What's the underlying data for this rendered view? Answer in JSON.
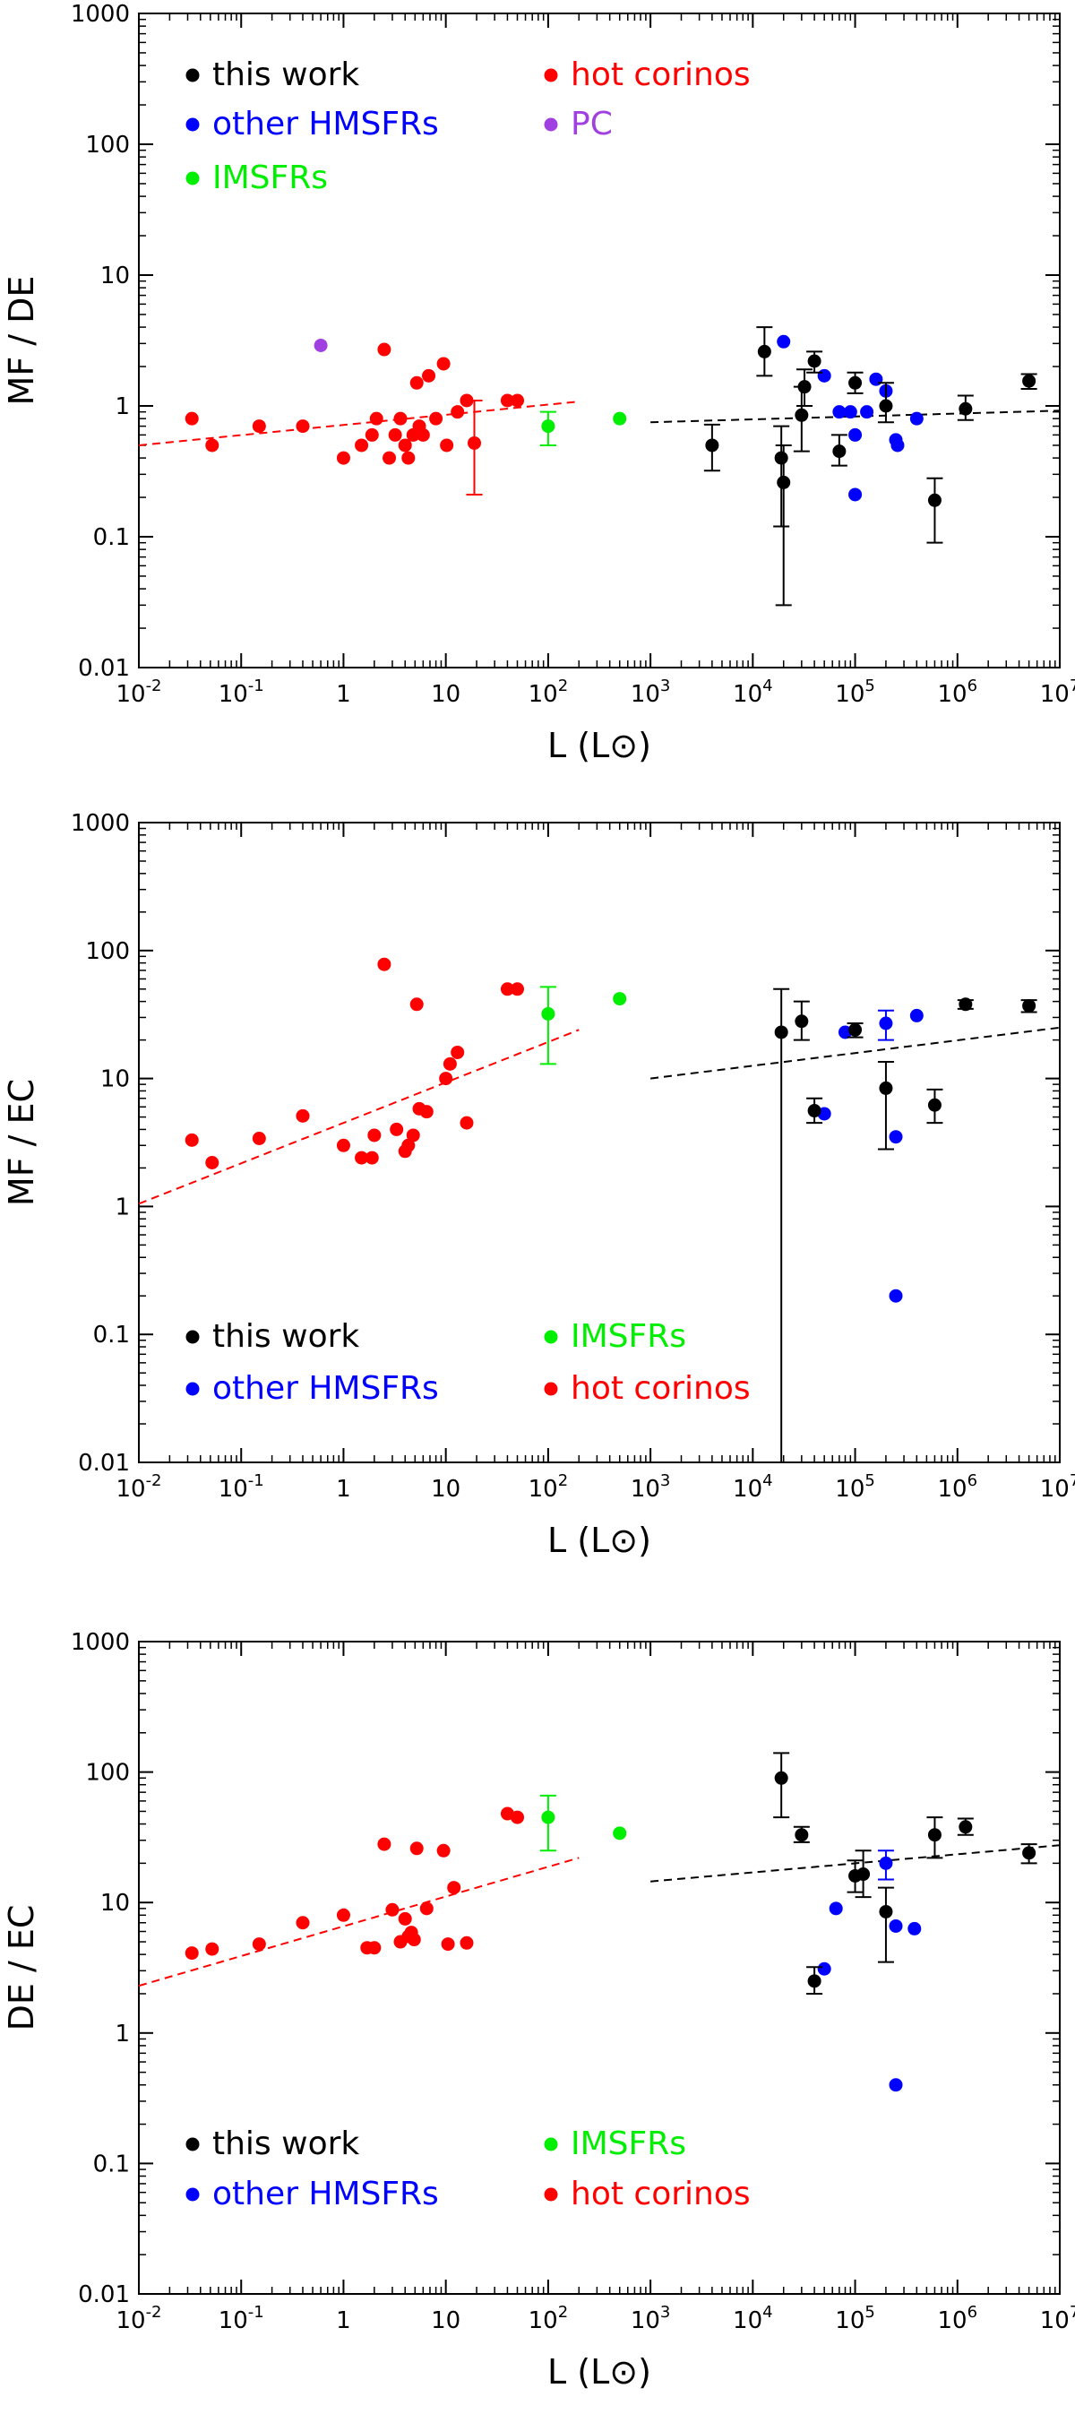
{
  "colors": {
    "this_work": "#000000",
    "other_hmsfrs": "#0000ff",
    "hot_corinos": "#ff0000",
    "imsfrs": "#00ee00",
    "pc": "#a040e0"
  },
  "chart_data": [
    {
      "type": "scatter",
      "xscale": "log",
      "yscale": "log",
      "xlabel": "L (L⊙)",
      "ylabel": "MF / DE",
      "xlim": [
        0.01,
        10000000
      ],
      "ylim": [
        0.01,
        1000
      ],
      "x_ticks": [
        {
          "v": 0.01,
          "m": "10",
          "e": "-2"
        },
        {
          "v": 0.1,
          "m": "10",
          "e": "-1"
        },
        {
          "v": 1,
          "m": "1",
          "e": ""
        },
        {
          "v": 10,
          "m": "10",
          "e": ""
        },
        {
          "v": 100,
          "m": "10",
          "e": "2"
        },
        {
          "v": 1000,
          "m": "10",
          "e": "3"
        },
        {
          "v": 10000,
          "m": "10",
          "e": "4"
        },
        {
          "v": 100000,
          "m": "10",
          "e": "5"
        },
        {
          "v": 1000000,
          "m": "10",
          "e": "6"
        },
        {
          "v": 10000000,
          "m": "10",
          "e": "7"
        }
      ],
      "y_ticks": [
        "0.01",
        "0.1",
        "1",
        "10",
        "100",
        "1000"
      ],
      "legend": [
        {
          "label": "this work",
          "color": "#000000"
        },
        {
          "label": "hot corinos",
          "color": "#ff0000"
        },
        {
          "label": "other HMSFRs",
          "color": "#0000ff"
        },
        {
          "label": "PC",
          "color": "#a040e0"
        },
        {
          "label": "IMSFRs",
          "color": "#00ee00"
        }
      ],
      "series": [
        {
          "name": "hot corinos",
          "color": "#ff0000",
          "points": [
            {
              "x": 0.033,
              "y": 0.8
            },
            {
              "x": 0.052,
              "y": 0.5
            },
            {
              "x": 0.15,
              "y": 0.7
            },
            {
              "x": 0.4,
              "y": 0.7
            },
            {
              "x": 1.0,
              "y": 0.4
            },
            {
              "x": 1.5,
              "y": 0.5
            },
            {
              "x": 1.9,
              "y": 0.6
            },
            {
              "x": 2.1,
              "y": 0.8
            },
            {
              "x": 2.5,
              "y": 2.7
            },
            {
              "x": 2.8,
              "y": 0.4
            },
            {
              "x": 3.2,
              "y": 0.6
            },
            {
              "x": 3.6,
              "y": 0.8
            },
            {
              "x": 4.0,
              "y": 0.5
            },
            {
              "x": 4.3,
              "y": 0.4
            },
            {
              "x": 4.8,
              "y": 0.6
            },
            {
              "x": 5.2,
              "y": 1.5
            },
            {
              "x": 5.5,
              "y": 0.7
            },
            {
              "x": 6.0,
              "y": 0.6
            },
            {
              "x": 6.8,
              "y": 1.7
            },
            {
              "x": 8.0,
              "y": 0.8
            },
            {
              "x": 9.5,
              "y": 2.1
            },
            {
              "x": 10.2,
              "y": 0.5
            },
            {
              "x": 13.0,
              "y": 0.9
            },
            {
              "x": 16.0,
              "y": 1.1
            },
            {
              "x": 19.0,
              "y": 0.52,
              "lo": 0.21,
              "hi": 1.1
            },
            {
              "x": 40.0,
              "y": 1.1
            },
            {
              "x": 50.0,
              "y": 1.1
            }
          ]
        },
        {
          "name": "PC",
          "color": "#a040e0",
          "points": [
            {
              "x": 0.6,
              "y": 2.9
            }
          ]
        },
        {
          "name": "IMSFRs",
          "color": "#00ee00",
          "points": [
            {
              "x": 100,
              "y": 0.7,
              "lo": 0.5,
              "hi": 0.9
            },
            {
              "x": 500,
              "y": 0.8
            }
          ]
        },
        {
          "name": "other HMSFRs",
          "color": "#0000ff",
          "points": [
            {
              "x": 20000,
              "y": 3.1
            },
            {
              "x": 50000,
              "y": 1.7
            },
            {
              "x": 70000,
              "y": 0.9
            },
            {
              "x": 90000,
              "y": 0.9
            },
            {
              "x": 100000,
              "y": 0.6
            },
            {
              "x": 100000,
              "y": 0.21
            },
            {
              "x": 130000,
              "y": 0.9
            },
            {
              "x": 160000,
              "y": 1.6
            },
            {
              "x": 200000,
              "y": 1.3
            },
            {
              "x": 250000,
              "y": 0.55
            },
            {
              "x": 260000,
              "y": 0.5
            },
            {
              "x": 400000,
              "y": 0.8
            }
          ]
        },
        {
          "name": "this work",
          "color": "#000000",
          "points": [
            {
              "x": 4000,
              "y": 0.5,
              "lo": 0.32,
              "hi": 0.72
            },
            {
              "x": 13000,
              "y": 2.6,
              "lo": 1.7,
              "hi": 4.0
            },
            {
              "x": 19000,
              "y": 0.4,
              "lo": 0.12,
              "hi": 0.7
            },
            {
              "x": 20000,
              "y": 0.26,
              "lo": 0.03,
              "hi": 0.5
            },
            {
              "x": 30000,
              "y": 0.85,
              "lo": 0.45,
              "hi": 1.4
            },
            {
              "x": 32000,
              "y": 1.4,
              "lo": 1.0,
              "hi": 1.9
            },
            {
              "x": 40000,
              "y": 2.2,
              "lo": 1.8,
              "hi": 2.6
            },
            {
              "x": 70000,
              "y": 0.45,
              "lo": 0.35,
              "hi": 0.6
            },
            {
              "x": 100000,
              "y": 1.5,
              "lo": 1.25,
              "hi": 1.8
            },
            {
              "x": 200000,
              "y": 1.0,
              "lo": 0.75,
              "hi": 1.5
            },
            {
              "x": 600000,
              "y": 0.19,
              "lo": 0.09,
              "hi": 0.28
            },
            {
              "x": 1200000,
              "y": 0.95,
              "lo": 0.78,
              "hi": 1.2
            },
            {
              "x": 5000000,
              "y": 1.55,
              "lo": 1.35,
              "hi": 1.75
            }
          ]
        }
      ],
      "fits": [
        {
          "color": "#ff0000",
          "x": [
            0.01,
            200
          ],
          "y": [
            0.5,
            1.08
          ]
        },
        {
          "color": "#000000",
          "x": [
            1000,
            10000000
          ],
          "y": [
            0.75,
            0.92
          ]
        }
      ]
    },
    {
      "type": "scatter",
      "xscale": "log",
      "yscale": "log",
      "xlabel": "L (L⊙)",
      "ylabel": "MF / EC",
      "xlim": [
        0.01,
        10000000
      ],
      "ylim": [
        0.01,
        1000
      ],
      "x_ticks": [
        {
          "v": 0.01,
          "m": "10",
          "e": "-2"
        },
        {
          "v": 0.1,
          "m": "10",
          "e": "-1"
        },
        {
          "v": 1,
          "m": "1",
          "e": ""
        },
        {
          "v": 10,
          "m": "10",
          "e": ""
        },
        {
          "v": 100,
          "m": "10",
          "e": "2"
        },
        {
          "v": 1000,
          "m": "10",
          "e": "3"
        },
        {
          "v": 10000,
          "m": "10",
          "e": "4"
        },
        {
          "v": 100000,
          "m": "10",
          "e": "5"
        },
        {
          "v": 1000000,
          "m": "10",
          "e": "6"
        },
        {
          "v": 10000000,
          "m": "10",
          "e": "7"
        }
      ],
      "y_ticks": [
        "0.01",
        "0.1",
        "1",
        "10",
        "100",
        "1000"
      ],
      "legend": [
        {
          "label": "this work",
          "color": "#000000"
        },
        {
          "label": "IMSFRs",
          "color": "#00ee00"
        },
        {
          "label": "other HMSFRs",
          "color": "#0000ff"
        },
        {
          "label": "hot corinos",
          "color": "#ff0000"
        }
      ],
      "series": [
        {
          "name": "hot corinos",
          "color": "#ff0000",
          "points": [
            {
              "x": 0.033,
              "y": 3.3
            },
            {
              "x": 0.052,
              "y": 2.2
            },
            {
              "x": 0.15,
              "y": 3.4
            },
            {
              "x": 0.4,
              "y": 5.1
            },
            {
              "x": 1.0,
              "y": 3.0
            },
            {
              "x": 1.5,
              "y": 2.4
            },
            {
              "x": 1.9,
              "y": 2.4
            },
            {
              "x": 2.0,
              "y": 3.6
            },
            {
              "x": 2.5,
              "y": 78
            },
            {
              "x": 3.3,
              "y": 4.0
            },
            {
              "x": 4.0,
              "y": 2.7
            },
            {
              "x": 4.3,
              "y": 3.0
            },
            {
              "x": 4.8,
              "y": 3.6
            },
            {
              "x": 5.2,
              "y": 38
            },
            {
              "x": 5.5,
              "y": 5.8
            },
            {
              "x": 6.5,
              "y": 5.5
            },
            {
              "x": 10.0,
              "y": 10.0
            },
            {
              "x": 11.0,
              "y": 13.0
            },
            {
              "x": 13.0,
              "y": 16.0
            },
            {
              "x": 16.0,
              "y": 4.5
            },
            {
              "x": 40.0,
              "y": 50
            },
            {
              "x": 50.0,
              "y": 50
            }
          ]
        },
        {
          "name": "IMSFRs",
          "color": "#00ee00",
          "points": [
            {
              "x": 100,
              "y": 32,
              "lo": 13,
              "hi": 52
            },
            {
              "x": 500,
              "y": 42
            }
          ]
        },
        {
          "name": "other HMSFRs",
          "color": "#0000ff",
          "points": [
            {
              "x": 50000,
              "y": 5.3
            },
            {
              "x": 80000,
              "y": 23
            },
            {
              "x": 200000,
              "y": 27,
              "lo": 20,
              "hi": 34
            },
            {
              "x": 250000,
              "y": 3.5
            },
            {
              "x": 250000,
              "y": 0.2
            },
            {
              "x": 400000,
              "y": 31
            }
          ]
        },
        {
          "name": "this work",
          "color": "#000000",
          "points": [
            {
              "x": 19000,
              "y": 23,
              "lo": 0.01,
              "hi": 50
            },
            {
              "x": 30000,
              "y": 28,
              "lo": 20,
              "hi": 40
            },
            {
              "x": 40000,
              "y": 5.6,
              "lo": 4.5,
              "hi": 7.0
            },
            {
              "x": 100000,
              "y": 24,
              "lo": 21,
              "hi": 27
            },
            {
              "x": 200000,
              "y": 8.4,
              "lo": 2.8,
              "hi": 13.5
            },
            {
              "x": 600000,
              "y": 6.2,
              "lo": 4.5,
              "hi": 8.2
            },
            {
              "x": 1200000,
              "y": 38,
              "lo": 35,
              "hi": 41
            },
            {
              "x": 5000000,
              "y": 37,
              "lo": 33,
              "hi": 41
            }
          ]
        }
      ],
      "fits": [
        {
          "color": "#ff0000",
          "x": [
            0.01,
            200
          ],
          "y": [
            1.05,
            24
          ]
        },
        {
          "color": "#000000",
          "x": [
            1000,
            10000000
          ],
          "y": [
            10.0,
            25.0
          ]
        }
      ]
    },
    {
      "type": "scatter",
      "xscale": "log",
      "yscale": "log",
      "xlabel": "L (L⊙)",
      "ylabel": "DE / EC",
      "xlim": [
        0.01,
        10000000
      ],
      "ylim": [
        0.01,
        1000
      ],
      "x_ticks": [
        {
          "v": 0.01,
          "m": "10",
          "e": "-2"
        },
        {
          "v": 0.1,
          "m": "10",
          "e": "-1"
        },
        {
          "v": 1,
          "m": "1",
          "e": ""
        },
        {
          "v": 10,
          "m": "10",
          "e": ""
        },
        {
          "v": 100,
          "m": "10",
          "e": "2"
        },
        {
          "v": 1000,
          "m": "10",
          "e": "3"
        },
        {
          "v": 10000,
          "m": "10",
          "e": "4"
        },
        {
          "v": 100000,
          "m": "10",
          "e": "5"
        },
        {
          "v": 1000000,
          "m": "10",
          "e": "6"
        },
        {
          "v": 10000000,
          "m": "10",
          "e": "7"
        }
      ],
      "y_ticks": [
        "0.01",
        "0.1",
        "1",
        "10",
        "100",
        "1000"
      ],
      "legend": [
        {
          "label": "this work",
          "color": "#000000"
        },
        {
          "label": "IMSFRs",
          "color": "#00ee00"
        },
        {
          "label": "other HMSFRs",
          "color": "#0000ff"
        },
        {
          "label": "hot corinos",
          "color": "#ff0000"
        }
      ],
      "series": [
        {
          "name": "hot corinos",
          "color": "#ff0000",
          "points": [
            {
              "x": 0.033,
              "y": 4.1
            },
            {
              "x": 0.052,
              "y": 4.4
            },
            {
              "x": 0.15,
              "y": 4.8
            },
            {
              "x": 0.4,
              "y": 7.0
            },
            {
              "x": 1.0,
              "y": 8.0
            },
            {
              "x": 1.7,
              "y": 4.5
            },
            {
              "x": 2.0,
              "y": 4.5
            },
            {
              "x": 2.5,
              "y": 28
            },
            {
              "x": 3.0,
              "y": 8.8
            },
            {
              "x": 3.6,
              "y": 5.0
            },
            {
              "x": 4.0,
              "y": 7.5
            },
            {
              "x": 4.3,
              "y": 5.5
            },
            {
              "x": 4.6,
              "y": 5.9
            },
            {
              "x": 4.9,
              "y": 5.2
            },
            {
              "x": 5.2,
              "y": 26
            },
            {
              "x": 6.5,
              "y": 9.0
            },
            {
              "x": 9.5,
              "y": 25
            },
            {
              "x": 10.5,
              "y": 4.8
            },
            {
              "x": 12.0,
              "y": 13
            },
            {
              "x": 16.0,
              "y": 4.9
            },
            {
              "x": 40.0,
              "y": 48
            },
            {
              "x": 50.0,
              "y": 45
            }
          ]
        },
        {
          "name": "IMSFRs",
          "color": "#00ee00",
          "points": [
            {
              "x": 100,
              "y": 45,
              "lo": 25,
              "hi": 66
            },
            {
              "x": 500,
              "y": 34
            }
          ]
        },
        {
          "name": "other HMSFRs",
          "color": "#0000ff",
          "points": [
            {
              "x": 50000,
              "y": 3.1
            },
            {
              "x": 65000,
              "y": 9.0
            },
            {
              "x": 200000,
              "y": 20,
              "lo": 15,
              "hi": 25
            },
            {
              "x": 250000,
              "y": 6.6
            },
            {
              "x": 250000,
              "y": 0.4
            },
            {
              "x": 380000,
              "y": 6.3
            }
          ]
        },
        {
          "name": "this work",
          "color": "#000000",
          "points": [
            {
              "x": 19000,
              "y": 90,
              "lo": 45,
              "hi": 140
            },
            {
              "x": 30000,
              "y": 33,
              "lo": 29,
              "hi": 38
            },
            {
              "x": 40000,
              "y": 2.5,
              "lo": 2.0,
              "hi": 3.2
            },
            {
              "x": 100000,
              "y": 16,
              "lo": 12,
              "hi": 21
            },
            {
              "x": 120000,
              "y": 16.5,
              "lo": 11,
              "hi": 25
            },
            {
              "x": 200000,
              "y": 8.5,
              "lo": 3.5,
              "hi": 13
            },
            {
              "x": 600000,
              "y": 33,
              "lo": 22,
              "hi": 45
            },
            {
              "x": 1200000,
              "y": 38,
              "lo": 33,
              "hi": 44
            },
            {
              "x": 5000000,
              "y": 24,
              "lo": 20,
              "hi": 28
            }
          ]
        }
      ],
      "fits": [
        {
          "color": "#ff0000",
          "x": [
            0.01,
            200
          ],
          "y": [
            2.3,
            22
          ]
        },
        {
          "color": "#000000",
          "x": [
            1000,
            10000000
          ],
          "y": [
            14.5,
            27.5
          ]
        }
      ]
    }
  ]
}
